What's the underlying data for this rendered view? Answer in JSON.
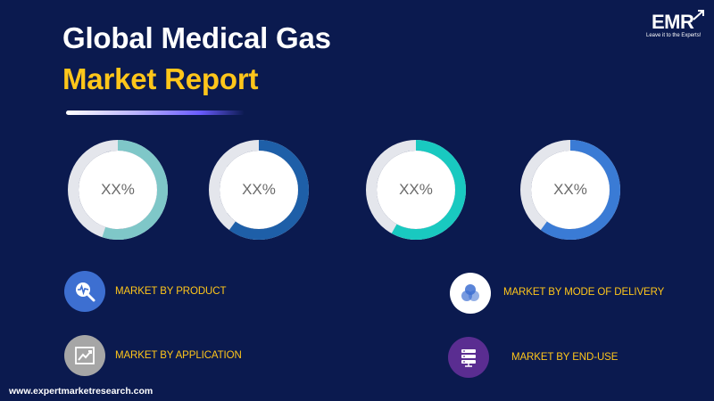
{
  "header": {
    "title_line1": "Global Medical Gas",
    "title_line2": "Market Report"
  },
  "logo": {
    "name": "EMR",
    "tagline": "Leave it to the Experts!"
  },
  "donuts": [
    {
      "label": "XX%",
      "fraction": 0.55,
      "color": "#7fc7c8"
    },
    {
      "label": "XX%",
      "fraction": 0.6,
      "color": "#1e5fa8"
    },
    {
      "label": "XX%",
      "fraction": 0.58,
      "color": "#19c9c0"
    },
    {
      "label": "XX%",
      "fraction": 0.6,
      "color": "#3a7bd5"
    }
  ],
  "segments": [
    {
      "label": "MARKET BY PRODUCT",
      "icon": "magnifier-heartbeat-icon",
      "icon_color": "#3d6fd1"
    },
    {
      "label": "MARKET  BY APPLICATION",
      "icon": "line-chart-icon",
      "icon_color": "#a6a6a6"
    },
    {
      "label": "MARKET BY MODE OF DELIVERY",
      "icon": "venn-circles-icon",
      "icon_color": "#ffffff"
    },
    {
      "label": "MARKET BY END-USE",
      "icon": "server-stack-icon",
      "icon_color": "#5a2d91"
    }
  ],
  "footer": {
    "url": "www.expertmarketresearch.com"
  }
}
